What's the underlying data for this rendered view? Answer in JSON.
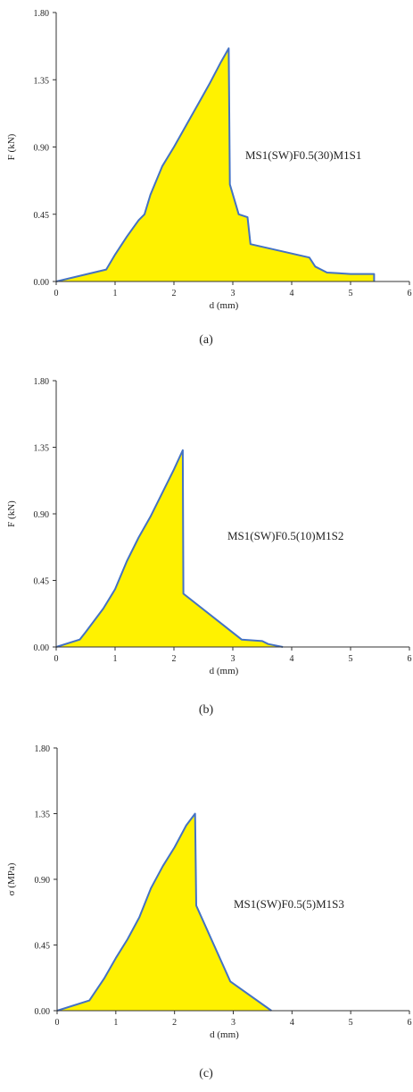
{
  "chart_data": [
    {
      "type": "area",
      "caption": "(a)",
      "annotation": "MS1(SW)F0.5(30)M1S1",
      "xlabel": "d (mm)",
      "ylabel": "F (kN)",
      "xlim": [
        0,
        6
      ],
      "ylim": [
        0,
        1.8
      ],
      "xticks": [
        "0",
        "1",
        "2",
        "3",
        "4",
        "5",
        "6"
      ],
      "yticks": [
        "0.00",
        "0.45",
        "0.90",
        "1.35",
        "1.80"
      ],
      "grid": false,
      "fill_color": "#fff200",
      "line_color": "#4472c4",
      "points": [
        [
          0,
          0
        ],
        [
          0.85,
          0.08
        ],
        [
          1.0,
          0.18
        ],
        [
          1.2,
          0.3
        ],
        [
          1.4,
          0.41
        ],
        [
          1.5,
          0.45
        ],
        [
          1.6,
          0.58
        ],
        [
          1.8,
          0.77
        ],
        [
          2.0,
          0.9
        ],
        [
          2.2,
          1.04
        ],
        [
          2.4,
          1.18
        ],
        [
          2.6,
          1.32
        ],
        [
          2.8,
          1.47
        ],
        [
          2.93,
          1.56
        ],
        [
          2.95,
          0.65
        ],
        [
          3.1,
          0.45
        ],
        [
          3.25,
          0.43
        ],
        [
          3.3,
          0.25
        ],
        [
          4.3,
          0.16
        ],
        [
          4.4,
          0.1
        ],
        [
          4.6,
          0.06
        ],
        [
          5.0,
          0.05
        ],
        [
          5.4,
          0.05
        ],
        [
          5.4,
          0.0
        ]
      ]
    },
    {
      "type": "area",
      "caption": "(b)",
      "annotation": "MS1(SW)F0.5(10)M1S2",
      "xlabel": "d (mm)",
      "ylabel": "F (kN)",
      "xlim": [
        0,
        6
      ],
      "ylim": [
        0,
        1.8
      ],
      "xticks": [
        "0",
        "1",
        "2",
        "3",
        "4",
        "5",
        "6"
      ],
      "yticks": [
        "0.00",
        "0.45",
        "0.90",
        "1.35",
        "1.80"
      ],
      "grid": false,
      "fill_color": "#fff200",
      "line_color": "#4472c4",
      "points": [
        [
          0,
          0
        ],
        [
          0.4,
          0.05
        ],
        [
          0.5,
          0.1
        ],
        [
          0.8,
          0.26
        ],
        [
          1.0,
          0.39
        ],
        [
          1.2,
          0.58
        ],
        [
          1.4,
          0.74
        ],
        [
          1.6,
          0.88
        ],
        [
          1.8,
          1.04
        ],
        [
          2.0,
          1.2
        ],
        [
          2.15,
          1.33
        ],
        [
          2.16,
          0.36
        ],
        [
          3.15,
          0.05
        ],
        [
          3.5,
          0.04
        ],
        [
          3.6,
          0.02
        ],
        [
          3.85,
          0.0
        ]
      ]
    },
    {
      "type": "area",
      "caption": "(c)",
      "annotation": "MS1(SW)F0.5(5)M1S3",
      "xlabel": "d (mm)",
      "ylabel": "σ (MPa)",
      "xlim": [
        0,
        6
      ],
      "ylim": [
        0,
        1.8
      ],
      "xticks": [
        "0",
        "1",
        "2",
        "3",
        "4",
        "5",
        "6"
      ],
      "yticks": [
        "0.00",
        "0.45",
        "0.90",
        "1.35",
        "1.80"
      ],
      "grid": false,
      "fill_color": "#fff200",
      "line_color": "#4472c4",
      "points": [
        [
          0,
          0
        ],
        [
          0.55,
          0.07
        ],
        [
          0.8,
          0.22
        ],
        [
          1.0,
          0.36
        ],
        [
          1.2,
          0.49
        ],
        [
          1.4,
          0.64
        ],
        [
          1.6,
          0.84
        ],
        [
          1.8,
          0.99
        ],
        [
          2.0,
          1.12
        ],
        [
          2.2,
          1.27
        ],
        [
          2.35,
          1.35
        ],
        [
          2.37,
          0.72
        ],
        [
          2.95,
          0.2
        ],
        [
          3.65,
          0.0
        ]
      ]
    }
  ]
}
